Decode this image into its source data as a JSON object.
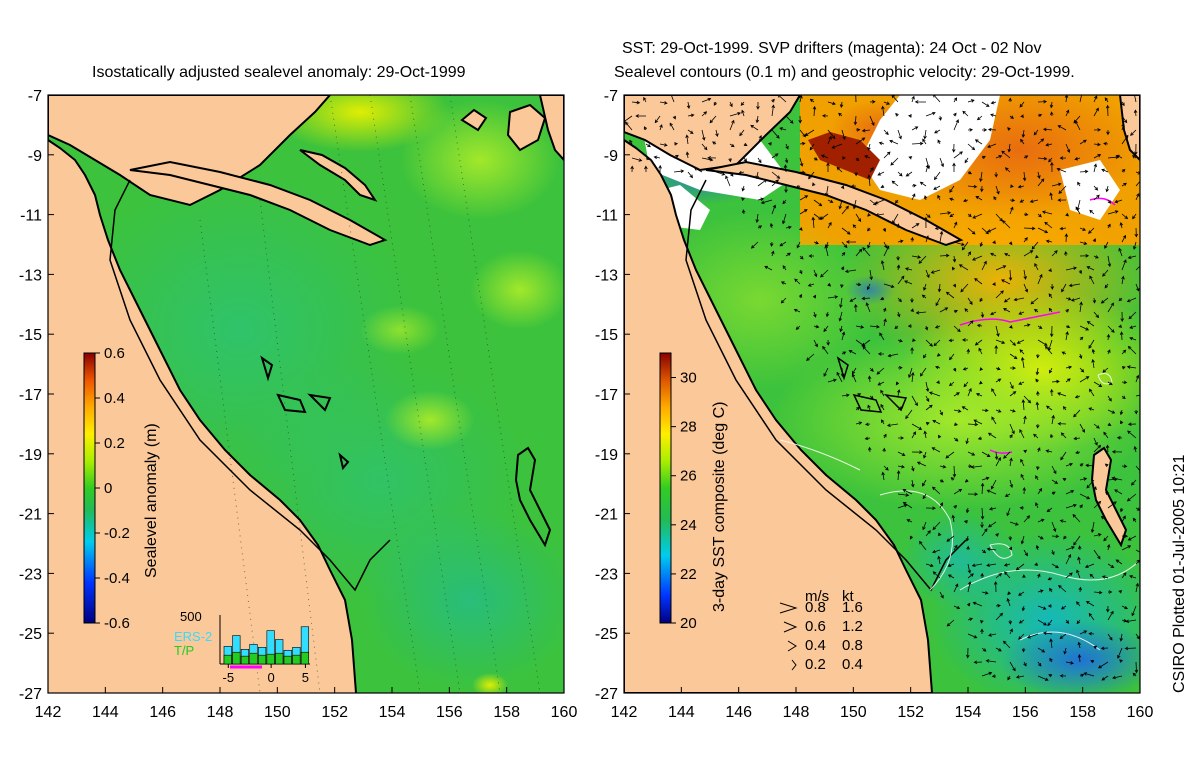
{
  "left_panel": {
    "title": "Isostatically adjusted sealevel anomaly: 29-Oct-1999",
    "colorbar_label": "Sealevel anomaly (m)",
    "colorbar_ticks": [
      "0.6",
      "0.4",
      "0.2",
      "0",
      "-0.2",
      "-0.4",
      "-0.6"
    ],
    "colorbar_range": [
      -0.6,
      0.6
    ],
    "histogram": {
      "max_label": "500",
      "series": [
        {
          "name": "ERS-2",
          "color": "#33ddff"
        },
        {
          "name": "T/P",
          "color": "#22cc22"
        }
      ],
      "x_ticks": [
        "-5",
        "0",
        "5"
      ],
      "x": [
        -5,
        -4,
        -3,
        -2,
        -1,
        0,
        1,
        2,
        3,
        4
      ],
      "ers2_values": [
        180,
        290,
        150,
        200,
        170,
        340,
        250,
        140,
        170,
        380
      ],
      "tp_values": [
        90,
        120,
        80,
        110,
        90,
        100,
        110,
        80,
        90,
        120
      ],
      "ylim": [
        0,
        500
      ]
    }
  },
  "right_panel": {
    "title_line1": "SST: 29-Oct-1999. SVP drifters (magenta): 24 Oct - 02 Nov",
    "title_line2": "Sealevel contours (0.1 m) and geostrophic velocity: 29-Oct-1999.",
    "colorbar_label": "3-day SST composite (deg C)",
    "colorbar_ticks": [
      "30",
      "28",
      "26",
      "24",
      "22",
      "20"
    ],
    "colorbar_range": [
      20,
      31
    ],
    "velocity_legend": {
      "header_ms": "m/s",
      "header_kt": "kt",
      "rows": [
        {
          "ms": "0.8",
          "kt": "1.6"
        },
        {
          "ms": "0.6",
          "kt": "1.2"
        },
        {
          "ms": "0.4",
          "kt": "0.8"
        },
        {
          "ms": "0.2",
          "kt": "0.4"
        }
      ]
    }
  },
  "axes": {
    "lon_ticks": [
      "142",
      "144",
      "146",
      "148",
      "150",
      "152",
      "154",
      "156",
      "158",
      "160"
    ],
    "lat_ticks": [
      "-7",
      "-9",
      "-11",
      "-13",
      "-15",
      "-17",
      "-19",
      "-21",
      "-23",
      "-25",
      "-27"
    ],
    "xlim": [
      142,
      160
    ],
    "ylim": [
      -27,
      -7
    ]
  },
  "credit": "CSIRO Plotted 01-Jul-2005 10:21",
  "colors": {
    "land": "#fbc899",
    "sea_base": "#3cc23c",
    "coast": "#000000"
  }
}
